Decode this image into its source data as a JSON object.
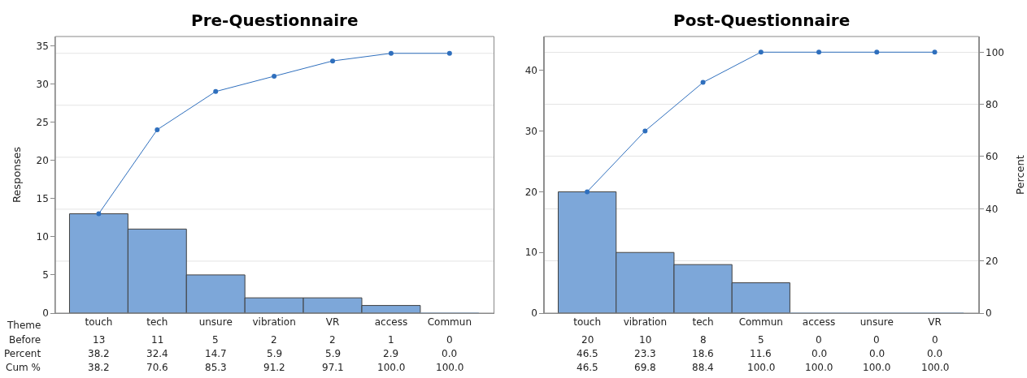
{
  "chart_data": [
    {
      "type": "bar",
      "title": "Pre-Questionnaire",
      "xlabel": "Theme",
      "ylabel": "Responses",
      "categories": [
        "touch",
        "tech",
        "unsure",
        "vibration",
        "VR",
        "access",
        "Commun"
      ],
      "ylim": [
        0,
        36.2
      ],
      "yticks": [
        0,
        5,
        10,
        15,
        20,
        25,
        30,
        35
      ],
      "marker": "circle",
      "ref_lines": [
        {
          "axis": "y",
          "value": 6.8,
          "color": "#e4e4e4"
        },
        {
          "axis": "y",
          "value": 13.6,
          "color": "#e4e4e4"
        },
        {
          "axis": "y",
          "value": 20.4,
          "color": "#e4e4e4"
        },
        {
          "axis": "y",
          "value": 27.2,
          "color": "#e4e4e4"
        },
        {
          "axis": "y",
          "value": 34,
          "color": "#e4e4e4"
        }
      ],
      "annotations": [
        "Before",
        "Percent",
        "38.2",
        "32.4",
        "14.7",
        "5.9",
        "5.9",
        "2.9",
        "0.0",
        "Cum %",
        "38.2",
        "70.6",
        "85.3",
        "91.2",
        "97.1",
        "100.0",
        "100.0"
      ],
      "series": [
        {
          "color": "#7da7d9",
          "values": [
            13,
            11,
            5,
            2,
            2,
            1,
            0
          ],
          "value_labels": [
            "13",
            "11",
            "5",
            "2",
            "2",
            "1",
            "0"
          ]
        },
        {
          "type": "line",
          "color": "#2f6fbd",
          "values": [
            13,
            24,
            29,
            31,
            33,
            34,
            34
          ]
        }
      ]
    },
    {
      "type": "bar",
      "title": "Post-Questionnaire",
      "y2label": "Percent",
      "categories": [
        "touch",
        "vibration",
        "tech",
        "Commun",
        "access",
        "unsure",
        "VR"
      ],
      "ylim": [
        0,
        45.6
      ],
      "yticks": [
        0,
        10,
        20,
        30,
        40
      ],
      "y2lim": [
        0,
        106
      ],
      "y2ticks": [
        0,
        20,
        40,
        60,
        80,
        100
      ],
      "grid": "y",
      "marker": "circle",
      "annotations": [
        "46.5",
        "23.3",
        "18.6",
        "11.6",
        "0.0",
        "0.0",
        "0.0",
        "46.5",
        "69.8",
        "88.4",
        "100.0",
        "100.0",
        "100.0",
        "100.0"
      ],
      "series": [
        {
          "color": "#7da7d9",
          "values": [
            20,
            10,
            8,
            5,
            0,
            0,
            0
          ],
          "value_labels": [
            "20",
            "10",
            "8",
            "5",
            "0",
            "0",
            "0"
          ]
        },
        {
          "type": "line",
          "axis": "y2",
          "color": "#2f6fbd",
          "values": [
            46.5,
            69.8,
            88.4,
            100,
            100,
            100,
            100
          ]
        }
      ]
    }
  ]
}
